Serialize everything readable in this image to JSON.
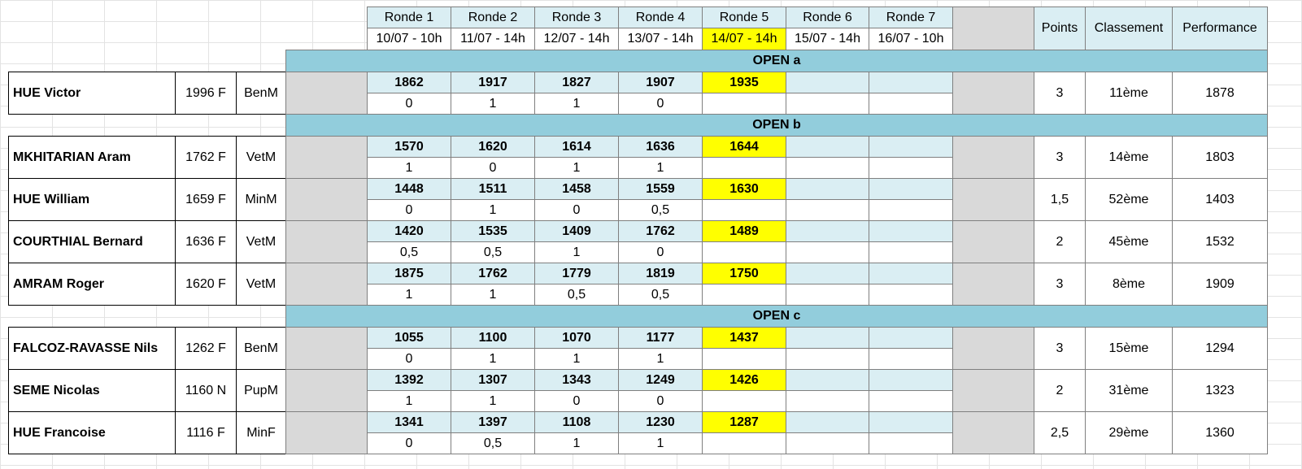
{
  "header": {
    "rounds": [
      {
        "name": "Ronde 1",
        "date": "10/07 - 10h"
      },
      {
        "name": "Ronde 2",
        "date": "11/07 - 14h"
      },
      {
        "name": "Ronde 3",
        "date": "12/07 - 14h"
      },
      {
        "name": "Ronde 4",
        "date": "13/07 - 14h"
      },
      {
        "name": "Ronde 5",
        "date": "14/07 - 14h"
      },
      {
        "name": "Ronde 6",
        "date": "15/07 - 14h"
      },
      {
        "name": "Ronde 7",
        "date": "16/07 - 10h"
      }
    ],
    "points": "Points",
    "ranking": "Classement",
    "performance": "Performance"
  },
  "groups": [
    {
      "title": "OPEN a",
      "players": [
        {
          "name": "HUE Victor",
          "elo": "1996 F",
          "category": "BenM",
          "opponents": [
            1862,
            1917,
            1827,
            1907,
            1935
          ],
          "scores": [
            "0",
            "1",
            "1",
            "0"
          ],
          "points": "3",
          "ranking": "11ème",
          "performance": 1878
        }
      ]
    },
    {
      "title": "OPEN b",
      "players": [
        {
          "name": "MKHITARIAN Aram",
          "elo": "1762 F",
          "category": "VetM",
          "opponents": [
            1570,
            1620,
            1614,
            1636,
            1644
          ],
          "scores": [
            "1",
            "0",
            "1",
            "1"
          ],
          "points": "3",
          "ranking": "14ème",
          "performance": 1803
        },
        {
          "name": "HUE William",
          "elo": "1659 F",
          "category": "MinM",
          "opponents": [
            1448,
            1511,
            1458,
            1559,
            1630
          ],
          "scores": [
            "0",
            "1",
            "0",
            "0,5"
          ],
          "points": "1,5",
          "ranking": "52ème",
          "performance": 1403
        },
        {
          "name": "COURTHIAL Bernard",
          "elo": "1636 F",
          "category": "VetM",
          "opponents": [
            1420,
            1535,
            1409,
            1762,
            1489
          ],
          "scores": [
            "0,5",
            "0,5",
            "1",
            "0"
          ],
          "points": "2",
          "ranking": "45ème",
          "performance": 1532
        },
        {
          "name": "AMRAM Roger",
          "elo": "1620 F",
          "category": "VetM",
          "opponents": [
            1875,
            1762,
            1779,
            1819,
            1750
          ],
          "scores": [
            "1",
            "1",
            "0,5",
            "0,5"
          ],
          "points": "3",
          "ranking": "8ème",
          "performance": 1909
        }
      ]
    },
    {
      "title": "OPEN c",
      "players": [
        {
          "name": "FALCOZ-RAVASSE Nils",
          "elo": "1262 F",
          "category": "BenM",
          "opponents": [
            1055,
            1100,
            1070,
            1177,
            1437
          ],
          "scores": [
            "0",
            "1",
            "1",
            "1"
          ],
          "points": "3",
          "ranking": "15ème",
          "performance": 1294
        },
        {
          "name": "SEME Nicolas",
          "elo": "1160 N",
          "category": "PupM",
          "opponents": [
            1392,
            1307,
            1343,
            1249,
            1426
          ],
          "scores": [
            "1",
            "1",
            "0",
            "0"
          ],
          "points": "2",
          "ranking": "31ème",
          "performance": 1323
        },
        {
          "name": "HUE Francoise",
          "elo": "1116 F",
          "category": "MinF",
          "opponents": [
            1341,
            1397,
            1108,
            1230,
            1287
          ],
          "scores": [
            "0",
            "0,5",
            "1",
            "1"
          ],
          "points": "2,5",
          "ranking": "29ème",
          "performance": 1360
        }
      ]
    }
  ]
}
